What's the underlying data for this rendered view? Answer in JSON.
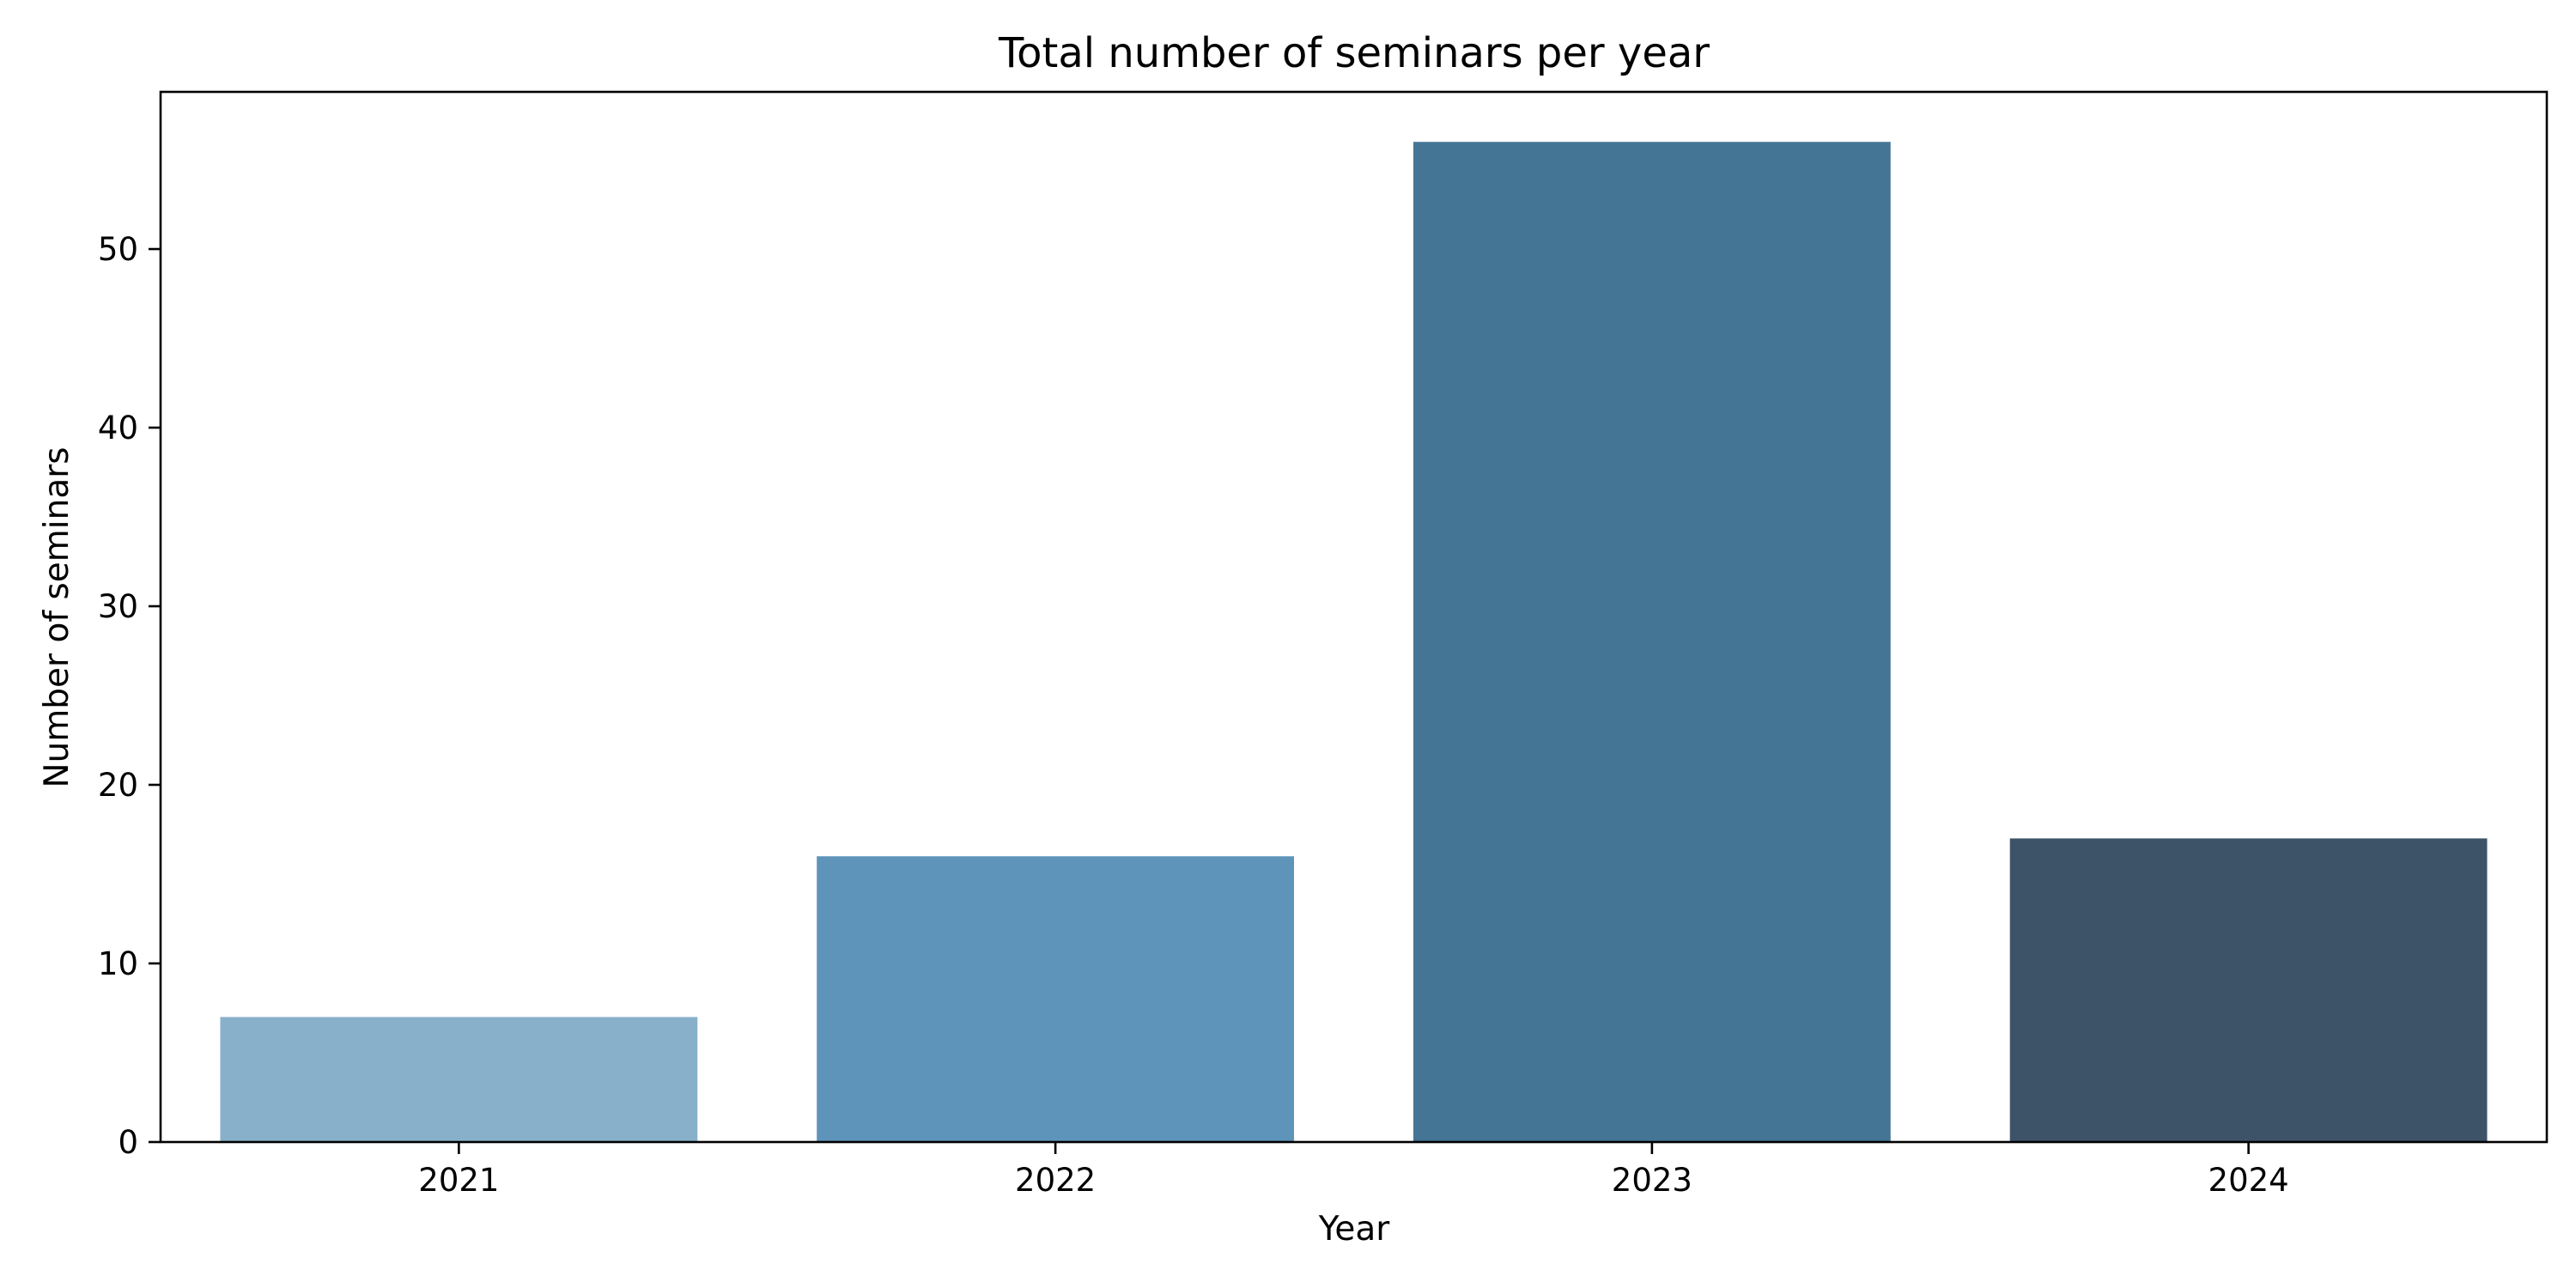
{
  "chart_data": {
    "type": "bar",
    "title": "Total number of seminars per year",
    "xlabel": "Year",
    "ylabel": "Number of seminars",
    "categories": [
      "2021",
      "2022",
      "2023",
      "2024"
    ],
    "values": [
      7,
      16,
      56,
      17
    ],
    "ylim": [
      0,
      58.8
    ],
    "yticks": [
      0,
      10,
      20,
      30,
      40,
      50
    ],
    "grid": false,
    "legend": "none",
    "colors": [
      "#88b0ca",
      "#5e94b9",
      "#457595",
      "#3d5468"
    ]
  }
}
